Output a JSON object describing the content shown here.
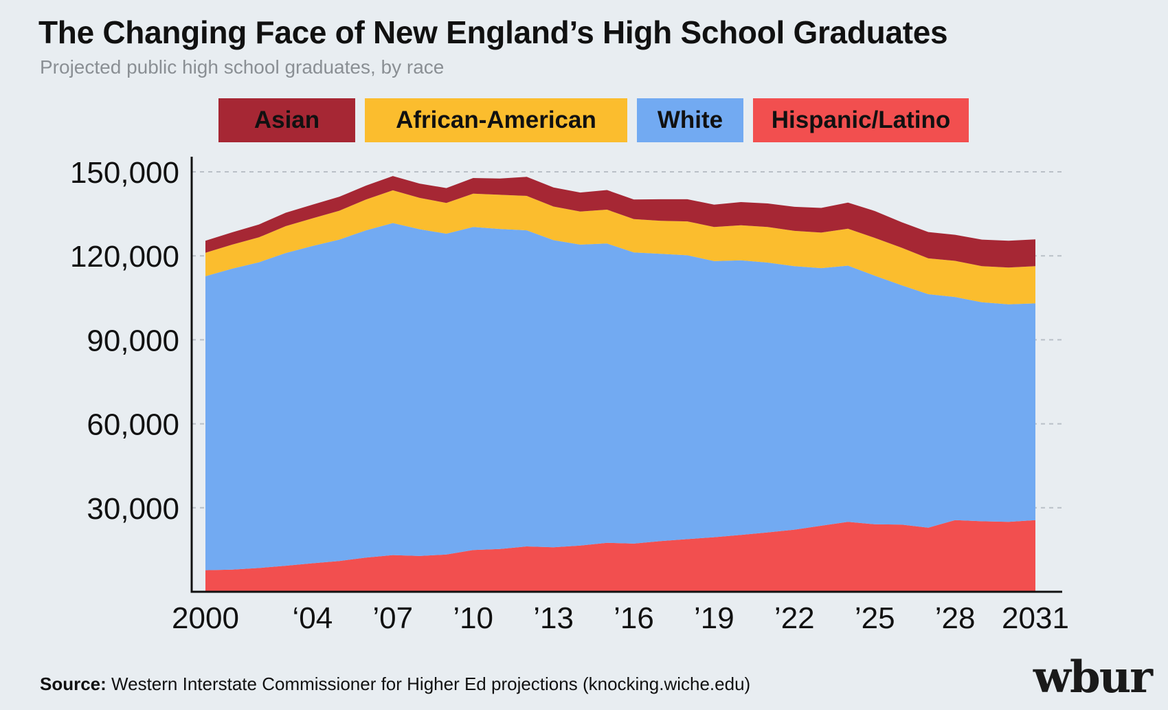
{
  "title": "The Changing Face of New England’s High School Graduates",
  "subtitle": "Projected public high school graduates, by race",
  "legend": [
    {
      "label": "Asian",
      "color": "#a62734"
    },
    {
      "label": "African-American",
      "color": "#fbbd2e"
    },
    {
      "label": "White",
      "color": "#72aaf2"
    },
    {
      "label": "Hispanic/Latino",
      "color": "#f24f4f"
    }
  ],
  "source": {
    "prefix": "Source:",
    "text": "Western Interstate Commissioner for Higher Ed projections (knocking.wiche.edu)"
  },
  "logo": "wbur",
  "chart_data": {
    "type": "area",
    "stacked": true,
    "title": "The Changing Face of New England’s High School Graduates",
    "subtitle": "Projected public high school graduates, by race",
    "x": [
      2000,
      2001,
      2002,
      2003,
      2004,
      2005,
      2006,
      2007,
      2008,
      2009,
      2010,
      2011,
      2012,
      2013,
      2014,
      2015,
      2016,
      2017,
      2018,
      2019,
      2020,
      2021,
      2022,
      2023,
      2024,
      2025,
      2026,
      2027,
      2028,
      2029,
      2030,
      2031
    ],
    "x_tick_values": [
      2000,
      2004,
      2007,
      2010,
      2013,
      2016,
      2019,
      2022,
      2025,
      2028,
      2031
    ],
    "x_tick_labels": [
      "2000",
      "‘04",
      "’07",
      "’10",
      "’13",
      "’16",
      "’19",
      "’22",
      "’25",
      "’28",
      "2031"
    ],
    "y_tick_values": [
      30000,
      60000,
      90000,
      120000,
      150000
    ],
    "y_tick_labels": [
      "30,000",
      "60,000",
      "90,000",
      "120,000",
      "150,000"
    ],
    "ylim": [
      0,
      155000
    ],
    "grid": "horizontal-dashed",
    "legend_position": "top",
    "series": [
      {
        "name": "Hispanic/Latino",
        "color": "#f24f4f",
        "values": [
          7700,
          7900,
          8500,
          9300,
          10200,
          11000,
          12200,
          13100,
          12800,
          13300,
          14900,
          15300,
          16200,
          15900,
          16500,
          17500,
          17200,
          18100,
          18800,
          19500,
          20300,
          21200,
          22200,
          23600,
          25000,
          24100,
          24000,
          22900,
          25600,
          25200,
          25000,
          25600
        ]
      },
      {
        "name": "White",
        "color": "#72aaf2",
        "values": [
          105000,
          107500,
          109200,
          111700,
          113300,
          114800,
          116900,
          118600,
          116700,
          114600,
          115400,
          114300,
          112900,
          109700,
          107500,
          106900,
          104000,
          102600,
          101400,
          98600,
          98100,
          96400,
          94100,
          92000,
          91500,
          88800,
          85500,
          83400,
          79700,
          78200,
          77700,
          77400
        ]
      },
      {
        "name": "African-American",
        "color": "#fbbd2e",
        "values": [
          8400,
          8600,
          8900,
          9600,
          9900,
          10300,
          11000,
          11700,
          11200,
          11000,
          11900,
          12200,
          12300,
          12000,
          11800,
          12100,
          11900,
          11800,
          12100,
          12200,
          12500,
          12700,
          12600,
          12700,
          13200,
          13500,
          13400,
          12800,
          12900,
          12900,
          13100,
          13300
        ]
      },
      {
        "name": "Asian",
        "color": "#a62734",
        "values": [
          4300,
          4400,
          4600,
          4800,
          4900,
          5000,
          5000,
          5100,
          5100,
          5300,
          5600,
          5800,
          6800,
          6800,
          6800,
          7000,
          7000,
          7700,
          7900,
          8000,
          8300,
          8400,
          8600,
          8800,
          9300,
          9600,
          9100,
          9400,
          9300,
          9500,
          9600,
          9600
        ]
      }
    ]
  }
}
